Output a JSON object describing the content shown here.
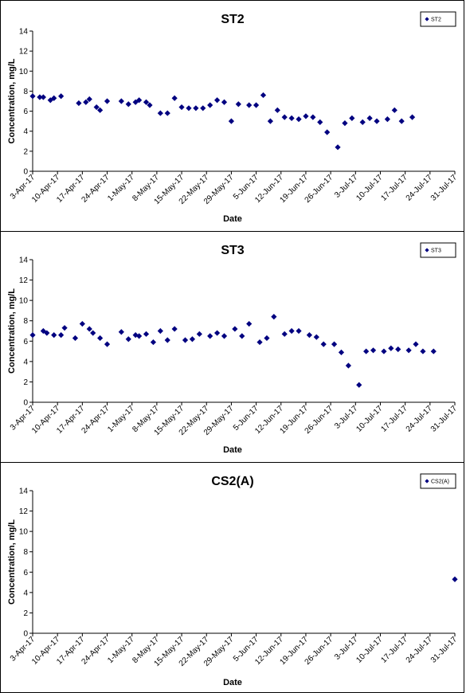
{
  "chart_data": [
    {
      "type": "scatter",
      "title": "ST2",
      "xlabel": "Date",
      "ylabel": "Concentration, mg/L",
      "ylim": [
        0,
        14
      ],
      "yticks": [
        0,
        2,
        4,
        6,
        8,
        10,
        12,
        14
      ],
      "xlim": [
        "2017-04-03",
        "2017-07-31"
      ],
      "xtick_labels": [
        "3-Apr-17",
        "10-Apr-17",
        "17-Apr-17",
        "24-Apr-17",
        "1-May-17",
        "8-May-17",
        "15-May-17",
        "22-May-17",
        "29-May-17",
        "5-Jun-17",
        "12-Jun-17",
        "19-Jun-17",
        "26-Jun-17",
        "3-Jul-17",
        "10-Jul-17",
        "17-Jul-17",
        "24-Jul-17",
        "31-Jul-17"
      ],
      "legend_position": "top-right",
      "marker_color": "#000080",
      "series": [
        {
          "name": "ST2",
          "points": [
            {
              "x": "2017-04-03",
              "y": 7.5
            },
            {
              "x": "2017-04-05",
              "y": 7.4
            },
            {
              "x": "2017-04-06",
              "y": 7.4
            },
            {
              "x": "2017-04-08",
              "y": 7.1
            },
            {
              "x": "2017-04-09",
              "y": 7.3
            },
            {
              "x": "2017-04-11",
              "y": 7.5
            },
            {
              "x": "2017-04-16",
              "y": 6.8
            },
            {
              "x": "2017-04-18",
              "y": 6.9
            },
            {
              "x": "2017-04-19",
              "y": 7.2
            },
            {
              "x": "2017-04-21",
              "y": 6.4
            },
            {
              "x": "2017-04-22",
              "y": 6.1
            },
            {
              "x": "2017-04-24",
              "y": 7.0
            },
            {
              "x": "2017-04-28",
              "y": 7.0
            },
            {
              "x": "2017-04-30",
              "y": 6.7
            },
            {
              "x": "2017-05-02",
              "y": 6.9
            },
            {
              "x": "2017-05-03",
              "y": 7.1
            },
            {
              "x": "2017-05-05",
              "y": 6.9
            },
            {
              "x": "2017-05-06",
              "y": 6.6
            },
            {
              "x": "2017-05-09",
              "y": 5.8
            },
            {
              "x": "2017-05-11",
              "y": 5.8
            },
            {
              "x": "2017-05-13",
              "y": 7.3
            },
            {
              "x": "2017-05-15",
              "y": 6.4
            },
            {
              "x": "2017-05-17",
              "y": 6.3
            },
            {
              "x": "2017-05-19",
              "y": 6.3
            },
            {
              "x": "2017-05-21",
              "y": 6.3
            },
            {
              "x": "2017-05-23",
              "y": 6.6
            },
            {
              "x": "2017-05-25",
              "y": 7.1
            },
            {
              "x": "2017-05-27",
              "y": 6.9
            },
            {
              "x": "2017-05-29",
              "y": 5.0
            },
            {
              "x": "2017-05-31",
              "y": 6.7
            },
            {
              "x": "2017-06-03",
              "y": 6.6
            },
            {
              "x": "2017-06-05",
              "y": 6.6
            },
            {
              "x": "2017-06-07",
              "y": 7.6
            },
            {
              "x": "2017-06-09",
              "y": 5.0
            },
            {
              "x": "2017-06-11",
              "y": 6.1
            },
            {
              "x": "2017-06-13",
              "y": 5.4
            },
            {
              "x": "2017-06-15",
              "y": 5.3
            },
            {
              "x": "2017-06-17",
              "y": 5.2
            },
            {
              "x": "2017-06-19",
              "y": 5.5
            },
            {
              "x": "2017-06-21",
              "y": 5.4
            },
            {
              "x": "2017-06-23",
              "y": 4.9
            },
            {
              "x": "2017-06-25",
              "y": 3.9
            },
            {
              "x": "2017-06-28",
              "y": 2.4
            },
            {
              "x": "2017-06-30",
              "y": 4.8
            },
            {
              "x": "2017-07-02",
              "y": 5.3
            },
            {
              "x": "2017-07-05",
              "y": 4.9
            },
            {
              "x": "2017-07-07",
              "y": 5.3
            },
            {
              "x": "2017-07-09",
              "y": 5.0
            },
            {
              "x": "2017-07-12",
              "y": 5.2
            },
            {
              "x": "2017-07-14",
              "y": 6.1
            },
            {
              "x": "2017-07-16",
              "y": 5.0
            },
            {
              "x": "2017-07-19",
              "y": 5.4
            }
          ]
        }
      ]
    },
    {
      "type": "scatter",
      "title": "ST3",
      "xlabel": "Date",
      "ylabel": "Concentration, mg/L",
      "ylim": [
        0,
        14
      ],
      "yticks": [
        0,
        2,
        4,
        6,
        8,
        10,
        12,
        14
      ],
      "xlim": [
        "2017-04-03",
        "2017-07-31"
      ],
      "xtick_labels": [
        "3-Apr-17",
        "10-Apr-17",
        "17-Apr-17",
        "24-Apr-17",
        "1-May-17",
        "8-May-17",
        "15-May-17",
        "22-May-17",
        "29-May-17",
        "5-Jun-17",
        "12-Jun-17",
        "19-Jun-17",
        "26-Jun-17",
        "3-Jul-17",
        "10-Jul-17",
        "17-Jul-17",
        "24-Jul-17",
        "31-Jul-17"
      ],
      "legend_position": "top-right",
      "marker_color": "#000080",
      "series": [
        {
          "name": "ST3",
          "points": [
            {
              "x": "2017-04-03",
              "y": 6.6
            },
            {
              "x": "2017-04-06",
              "y": 7.0
            },
            {
              "x": "2017-04-07",
              "y": 6.8
            },
            {
              "x": "2017-04-09",
              "y": 6.6
            },
            {
              "x": "2017-04-11",
              "y": 6.6
            },
            {
              "x": "2017-04-12",
              "y": 7.3
            },
            {
              "x": "2017-04-15",
              "y": 6.3
            },
            {
              "x": "2017-04-17",
              "y": 7.7
            },
            {
              "x": "2017-04-19",
              "y": 7.2
            },
            {
              "x": "2017-04-20",
              "y": 6.8
            },
            {
              "x": "2017-04-22",
              "y": 6.3
            },
            {
              "x": "2017-04-24",
              "y": 5.7
            },
            {
              "x": "2017-04-28",
              "y": 6.9
            },
            {
              "x": "2017-04-30",
              "y": 6.2
            },
            {
              "x": "2017-05-02",
              "y": 6.6
            },
            {
              "x": "2017-05-03",
              "y": 6.5
            },
            {
              "x": "2017-05-05",
              "y": 6.7
            },
            {
              "x": "2017-05-07",
              "y": 5.9
            },
            {
              "x": "2017-05-09",
              "y": 7.0
            },
            {
              "x": "2017-05-11",
              "y": 6.1
            },
            {
              "x": "2017-05-13",
              "y": 7.2
            },
            {
              "x": "2017-05-16",
              "y": 6.1
            },
            {
              "x": "2017-05-18",
              "y": 6.2
            },
            {
              "x": "2017-05-20",
              "y": 6.7
            },
            {
              "x": "2017-05-23",
              "y": 6.5
            },
            {
              "x": "2017-05-25",
              "y": 6.8
            },
            {
              "x": "2017-05-27",
              "y": 6.5
            },
            {
              "x": "2017-05-30",
              "y": 7.2
            },
            {
              "x": "2017-06-01",
              "y": 6.5
            },
            {
              "x": "2017-06-03",
              "y": 7.7
            },
            {
              "x": "2017-06-06",
              "y": 5.9
            },
            {
              "x": "2017-06-08",
              "y": 6.3
            },
            {
              "x": "2017-06-10",
              "y": 8.4
            },
            {
              "x": "2017-06-13",
              "y": 6.7
            },
            {
              "x": "2017-06-15",
              "y": 7.0
            },
            {
              "x": "2017-06-17",
              "y": 7.0
            },
            {
              "x": "2017-06-20",
              "y": 6.6
            },
            {
              "x": "2017-06-22",
              "y": 6.4
            },
            {
              "x": "2017-06-24",
              "y": 5.7
            },
            {
              "x": "2017-06-27",
              "y": 5.7
            },
            {
              "x": "2017-06-29",
              "y": 4.9
            },
            {
              "x": "2017-07-01",
              "y": 3.6
            },
            {
              "x": "2017-07-04",
              "y": 1.7
            },
            {
              "x": "2017-07-06",
              "y": 5.0
            },
            {
              "x": "2017-07-08",
              "y": 5.1
            },
            {
              "x": "2017-07-11",
              "y": 5.0
            },
            {
              "x": "2017-07-13",
              "y": 5.3
            },
            {
              "x": "2017-07-15",
              "y": 5.2
            },
            {
              "x": "2017-07-18",
              "y": 5.1
            },
            {
              "x": "2017-07-20",
              "y": 5.7
            },
            {
              "x": "2017-07-22",
              "y": 5.0
            },
            {
              "x": "2017-07-25",
              "y": 5.0
            }
          ]
        }
      ]
    },
    {
      "type": "scatter",
      "title": "CS2(A)",
      "xlabel": "Date",
      "ylabel": "Concentration, mg/L",
      "ylim": [
        0,
        14
      ],
      "yticks": [
        0,
        2,
        4,
        6,
        8,
        10,
        12,
        14
      ],
      "xlim": [
        "2017-04-03",
        "2017-07-31"
      ],
      "xtick_labels": [
        "3-Apr-17",
        "10-Apr-17",
        "17-Apr-17",
        "24-Apr-17",
        "1-May-17",
        "8-May-17",
        "15-May-17",
        "22-May-17",
        "29-May-17",
        "5-Jun-17",
        "12-Jun-17",
        "19-Jun-17",
        "26-Jun-17",
        "3-Jul-17",
        "10-Jul-17",
        "17-Jul-17",
        "24-Jul-17",
        "31-Jul-17"
      ],
      "legend_position": "top-right",
      "marker_color": "#000080",
      "series": [
        {
          "name": "CS2(A)",
          "points": [
            {
              "x": "2017-07-31",
              "y": 5.3
            }
          ]
        }
      ]
    }
  ]
}
